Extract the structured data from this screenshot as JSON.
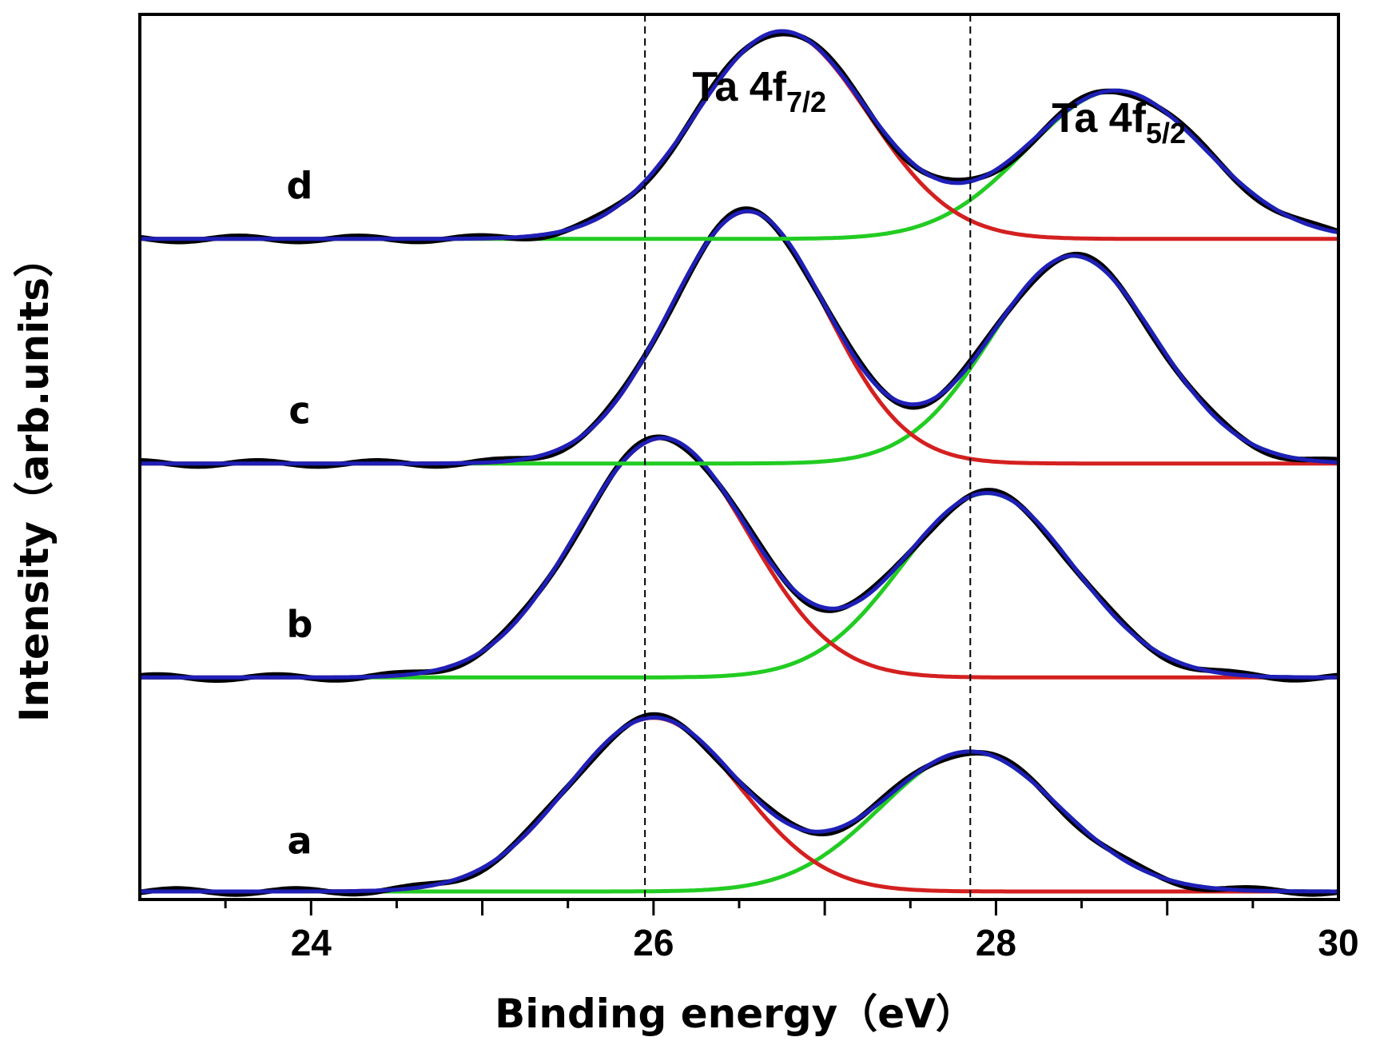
{
  "chart_data": {
    "type": "line",
    "title": "",
    "xlabel": "Binding energy（eV）",
    "ylabel": "Intensity（arb.units）",
    "xlim": [
      23,
      30
    ],
    "xticks": [
      24,
      26,
      28,
      30
    ],
    "xtick_labels": [
      "24",
      "26",
      "28",
      "30"
    ],
    "yticks": "none",
    "reference_lines_x": [
      25.95,
      27.85
    ],
    "peak_annotations": [
      {
        "main": "Ta 4f",
        "sub": "7/2",
        "x": 26.6
      },
      {
        "main": "Ta 4f",
        "sub": "5/2",
        "x": 28.7
      }
    ],
    "component_colors": {
      "measured": "#000000",
      "fit_envelope": "#1f1fb8",
      "ta4f72_component": "#d42020",
      "ta4f52_component": "#22cc22"
    },
    "series": [
      {
        "name": "a",
        "offset": 0.0,
        "peak1": {
          "center": 26.0,
          "height": 0.82,
          "sigma": 0.5
        },
        "peak2": {
          "center": 27.85,
          "height": 0.66,
          "sigma": 0.52
        }
      },
      {
        "name": "b",
        "offset": 1.01,
        "peak1": {
          "center": 26.05,
          "height": 1.13,
          "sigma": 0.5
        },
        "peak2": {
          "center": 27.95,
          "height": 0.87,
          "sigma": 0.5
        }
      },
      {
        "name": "c",
        "offset": 2.02,
        "peak1": {
          "center": 26.55,
          "height": 1.19,
          "sigma": 0.46
        },
        "peak2": {
          "center": 28.45,
          "height": 0.98,
          "sigma": 0.48
        }
      },
      {
        "name": "d",
        "offset": 3.08,
        "peak1": {
          "center": 26.75,
          "height": 0.98,
          "sigma": 0.5
        },
        "peak2": {
          "center": 28.7,
          "height": 0.7,
          "sigma": 0.52
        }
      }
    ]
  }
}
